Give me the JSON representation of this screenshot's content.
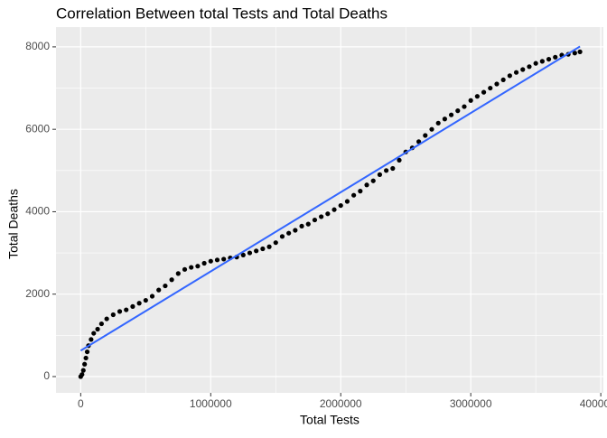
{
  "chart_data": {
    "type": "scatter",
    "title": "Correlation Between total Tests and Total Deaths",
    "x_label": "Total Tests",
    "y_label": "Total Deaths",
    "xlim": [
      -190000,
      4020000
    ],
    "ylim": [
      -395,
      8480
    ],
    "xticks": [
      0,
      1000000,
      2000000,
      3000000,
      4000000
    ],
    "yticks": [
      0,
      2000,
      4000,
      6000,
      8000
    ],
    "grid": true,
    "minor_grid": true,
    "panel_color": "#EBEBEB",
    "series": [
      {
        "mode": "points",
        "color": "#000000",
        "x": [
          0,
          10000,
          20000,
          30000,
          40000,
          50000,
          60000,
          80000,
          100000,
          130000,
          160000,
          200000,
          250000,
          300000,
          350000,
          400000,
          450000,
          500000,
          550000,
          600000,
          650000,
          700000,
          750000,
          800000,
          850000,
          900000,
          950000,
          1000000,
          1050000,
          1100000,
          1150000,
          1200000,
          1250000,
          1300000,
          1350000,
          1400000,
          1450000,
          1500000,
          1550000,
          1600000,
          1650000,
          1700000,
          1750000,
          1800000,
          1850000,
          1900000,
          1950000,
          2000000,
          2050000,
          2100000,
          2150000,
          2200000,
          2250000,
          2300000,
          2350000,
          2400000,
          2450000,
          2500000,
          2550000,
          2600000,
          2650000,
          2700000,
          2750000,
          2800000,
          2850000,
          2900000,
          2950000,
          3000000,
          3050000,
          3100000,
          3150000,
          3200000,
          3250000,
          3300000,
          3350000,
          3400000,
          3450000,
          3500000,
          3550000,
          3600000,
          3650000,
          3700000,
          3750000,
          3800000,
          3840000
        ],
        "values": [
          0,
          50,
          150,
          300,
          450,
          600,
          750,
          900,
          1050,
          1150,
          1280,
          1400,
          1500,
          1580,
          1620,
          1700,
          1780,
          1850,
          1950,
          2100,
          2200,
          2350,
          2500,
          2600,
          2650,
          2680,
          2750,
          2800,
          2830,
          2850,
          2880,
          2900,
          2950,
          3000,
          3050,
          3100,
          3150,
          3250,
          3400,
          3480,
          3550,
          3650,
          3700,
          3800,
          3880,
          3950,
          4050,
          4150,
          4250,
          4400,
          4500,
          4650,
          4750,
          4900,
          5000,
          5050,
          5250,
          5450,
          5550,
          5700,
          5850,
          6000,
          6150,
          6250,
          6350,
          6450,
          6550,
          6700,
          6800,
          6900,
          7000,
          7100,
          7200,
          7300,
          7380,
          7450,
          7520,
          7600,
          7650,
          7700,
          7750,
          7800,
          7820,
          7850,
          7880
        ]
      },
      {
        "mode": "line",
        "color": "#3366FF",
        "x": [
          0,
          3840000
        ],
        "values": [
          630,
          8010
        ]
      }
    ]
  }
}
